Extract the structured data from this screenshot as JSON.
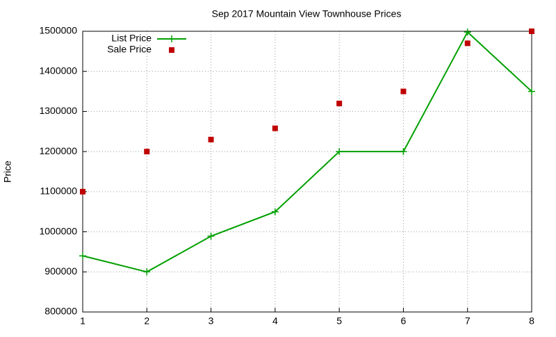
{
  "chart_data": {
    "type": "line",
    "title": "Sep 2017 Mountain View Townhouse Prices",
    "ylabel": "Price",
    "x": [
      1,
      2,
      3,
      4,
      5,
      6,
      7,
      8
    ],
    "series": [
      {
        "name": "List Price",
        "color": "#00a000",
        "style": "linespoints",
        "values": [
          940000,
          900000,
          989000,
          1050000,
          1200000,
          1200000,
          1498000,
          1350000
        ]
      },
      {
        "name": "Sale Price",
        "color": "#c00000",
        "style": "points",
        "values": [
          1100000,
          1200000,
          1230000,
          1258000,
          1320000,
          1350000,
          1470000,
          1500000
        ]
      }
    ],
    "xlim": [
      1,
      8
    ],
    "xticks": [
      1,
      2,
      3,
      4,
      5,
      6,
      7,
      8
    ],
    "ylim": [
      800000,
      1500000
    ],
    "yticks": [
      800000,
      900000,
      1000000,
      1100000,
      1200000,
      1300000,
      1400000,
      1500000
    ],
    "grid": true,
    "legend": "top-left"
  }
}
